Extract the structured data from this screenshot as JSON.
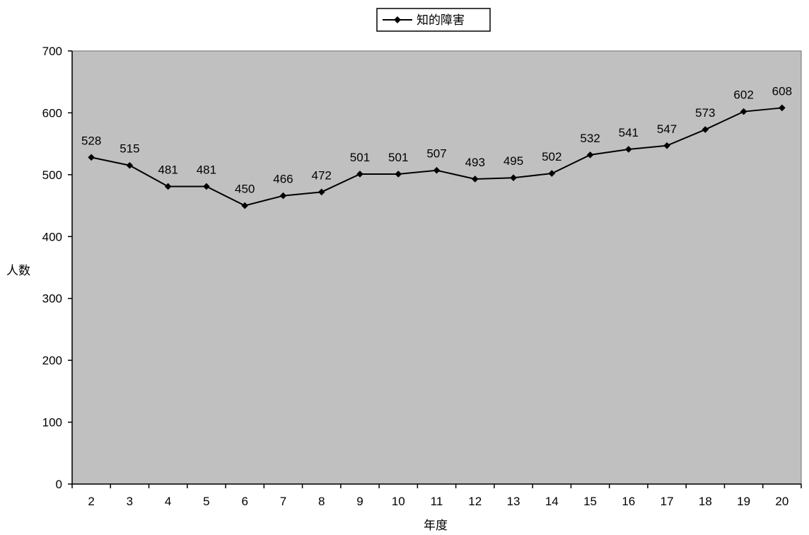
{
  "chart_data": {
    "type": "line",
    "x": [
      "2",
      "3",
      "4",
      "5",
      "6",
      "7",
      "8",
      "9",
      "10",
      "11",
      "12",
      "13",
      "14",
      "15",
      "16",
      "17",
      "18",
      "19",
      "20"
    ],
    "series": [
      {
        "name": "知的障害",
        "values": [
          528,
          515,
          481,
          481,
          450,
          466,
          472,
          501,
          501,
          507,
          493,
          495,
          502,
          532,
          541,
          547,
          573,
          602,
          608
        ],
        "data_labels": [
          "528",
          "515",
          "481",
          "481",
          "450",
          "466",
          "472",
          "501",
          "501",
          "507",
          "493",
          "495",
          "502",
          "532",
          "541",
          "547",
          "573",
          "602",
          "608"
        ]
      }
    ],
    "xlabel": "年度",
    "ylabel": "人数",
    "ylim": [
      0,
      700
    ],
    "yticks": [
      "0",
      "100",
      "200",
      "300",
      "400",
      "500",
      "600",
      "700"
    ],
    "grid": false,
    "legend": "top-center",
    "plot_background": "#c0c0c0",
    "line_color": "#000000",
    "marker": "diamond"
  }
}
